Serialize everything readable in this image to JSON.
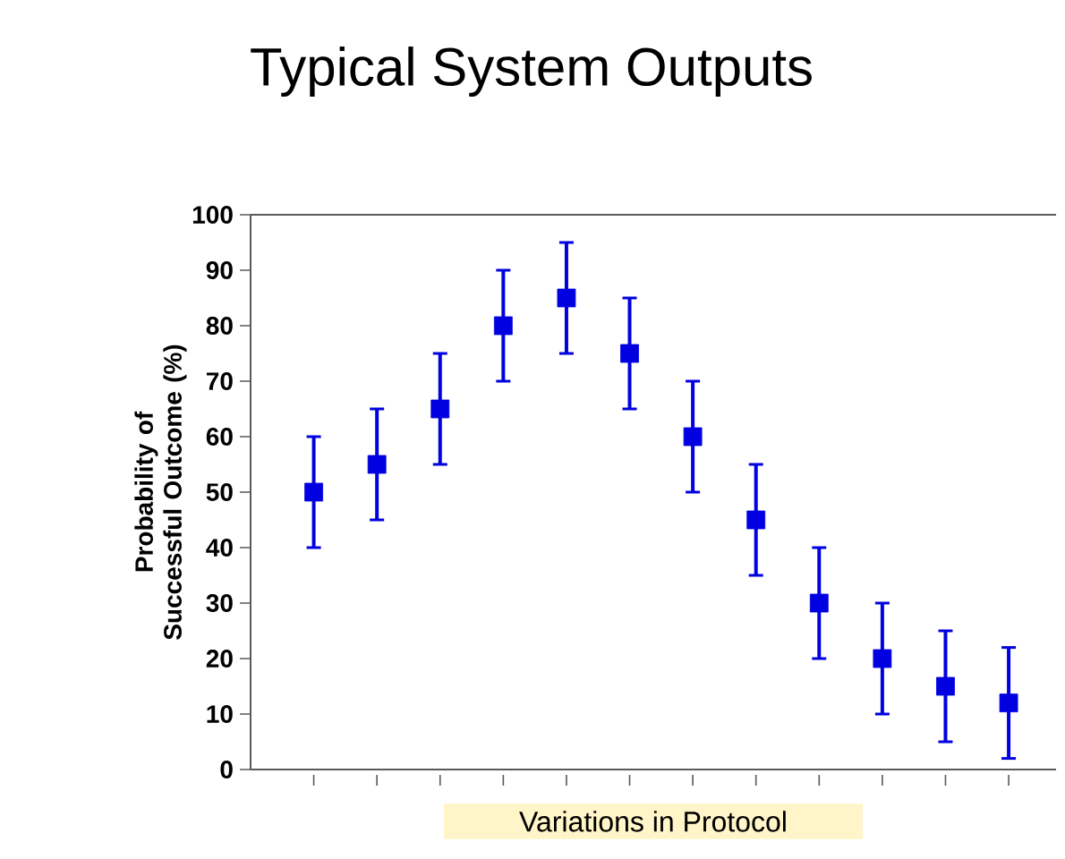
{
  "chart_data": {
    "type": "scatter",
    "title": "Typical System Outputs",
    "xlabel": "Variations in Protocol",
    "ylabel": "Probability of Successful Outcome (%)",
    "categories": [
      null,
      null,
      null,
      null,
      null,
      null,
      null,
      null,
      null,
      null,
      null,
      null
    ],
    "values": [
      50,
      55,
      65,
      80,
      85,
      75,
      60,
      45,
      30,
      20,
      15,
      12
    ],
    "errors": [
      10,
      10,
      10,
      10,
      10,
      10,
      10,
      10,
      10,
      10,
      10,
      10
    ],
    "color": "#0000e0",
    "marker": "square",
    "ylim": [
      0,
      100
    ],
    "yticks": [
      0,
      10,
      20,
      30,
      40,
      50,
      60,
      70,
      80,
      90,
      100
    ]
  }
}
